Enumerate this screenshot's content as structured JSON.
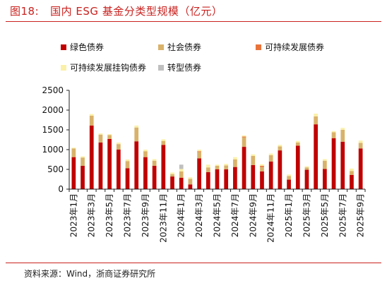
{
  "figure": {
    "title_num": "图18:",
    "title": "国内 ESG 基金分类型规模（亿元）",
    "source": "资料来源：Wind，浙商证券研究所"
  },
  "colors": {
    "green_bond": "#c00000",
    "social_bond": "#d9b26a",
    "sustainable_bond": "#e8743b",
    "sustainability_linked_bond": "#fbf0a8",
    "transition_bond": "#bfbfbf",
    "accent": "#c9221f"
  },
  "chart_data": {
    "type": "bar",
    "stacked": true,
    "ylim": [
      0,
      2500
    ],
    "yticks": [
      0,
      500,
      1000,
      1500,
      2000,
      2500
    ],
    "grid": false,
    "legend_position": "top",
    "categories": [
      "2023年1月",
      "2023年2月",
      "2023年3月",
      "2023年4月",
      "2023年5月",
      "2023年6月",
      "2023年7月",
      "2023年8月",
      "2023年9月",
      "2023年10月",
      "2023年11月",
      "2023年12月",
      "2024年1月",
      "2024年2月",
      "2024年3月",
      "2024年4月",
      "2024年5月",
      "2024年6月",
      "2024年7月",
      "2024年8月",
      "2024年9月",
      "2024年10月",
      "2024年11月",
      "2024年12月",
      "2025年1月",
      "2025年2月",
      "2025年3月",
      "2025年4月",
      "2025年5月",
      "2025年6月",
      "2025年7月",
      "2025年8月",
      "2025年9月"
    ],
    "tick_labels": [
      "2023年1月",
      "",
      "2023年3月",
      "",
      "2023年5月",
      "",
      "2023年7月",
      "",
      "2023年9月",
      "",
      "2023年11月",
      "",
      "2024年1月",
      "",
      "2024年3月",
      "",
      "2024年5月",
      "",
      "2024年7月",
      "",
      "2024年9月",
      "",
      "2024年11月",
      "",
      "2025年1月",
      "",
      "2025年3月",
      "",
      "2025年5月",
      "",
      "2025年7月",
      "",
      "2025年9月"
    ],
    "series": [
      {
        "name": "绿色债券",
        "key": "green_bond",
        "values": [
          810,
          590,
          1610,
          1180,
          1270,
          1000,
          530,
          1210,
          810,
          590,
          1120,
          320,
          290,
          120,
          780,
          430,
          500,
          500,
          560,
          1070,
          610,
          450,
          700,
          980,
          240,
          1100,
          490,
          1640,
          510,
          1290,
          1200,
          360,
          1030
        ]
      },
      {
        "name": "社会债券",
        "key": "social_bond",
        "values": [
          220,
          210,
          250,
          200,
          100,
          140,
          180,
          350,
          150,
          130,
          100,
          60,
          160,
          140,
          160,
          120,
          90,
          100,
          190,
          240,
          230,
          110,
          160,
          100,
          90,
          80,
          60,
          200,
          210,
          150,
          300,
          100,
          140
        ]
      },
      {
        "name": "可持续发展债券",
        "key": "sustainable_bond",
        "values": [
          0,
          0,
          0,
          0,
          0,
          0,
          0,
          0,
          0,
          0,
          0,
          0,
          0,
          0,
          20,
          0,
          0,
          0,
          0,
          20,
          0,
          30,
          0,
          0,
          0,
          0,
          0,
          0,
          0,
          0,
          0,
          0,
          0
        ]
      },
      {
        "name": "可持续发展挂钩债券",
        "key": "sustainability_linked_bond",
        "values": [
          20,
          30,
          40,
          30,
          20,
          40,
          40,
          50,
          40,
          40,
          40,
          40,
          60,
          40,
          40,
          70,
          30,
          40,
          60,
          30,
          40,
          40,
          40,
          40,
          40,
          40,
          30,
          70,
          40,
          30,
          50,
          60,
          60
        ]
      },
      {
        "name": "转型债券",
        "key": "transition_bond",
        "values": [
          0,
          0,
          0,
          0,
          0,
          0,
          0,
          0,
          0,
          0,
          0,
          0,
          110,
          0,
          0,
          0,
          0,
          0,
          0,
          0,
          0,
          0,
          0,
          0,
          0,
          0,
          0,
          0,
          0,
          0,
          0,
          0,
          0
        ]
      }
    ]
  }
}
